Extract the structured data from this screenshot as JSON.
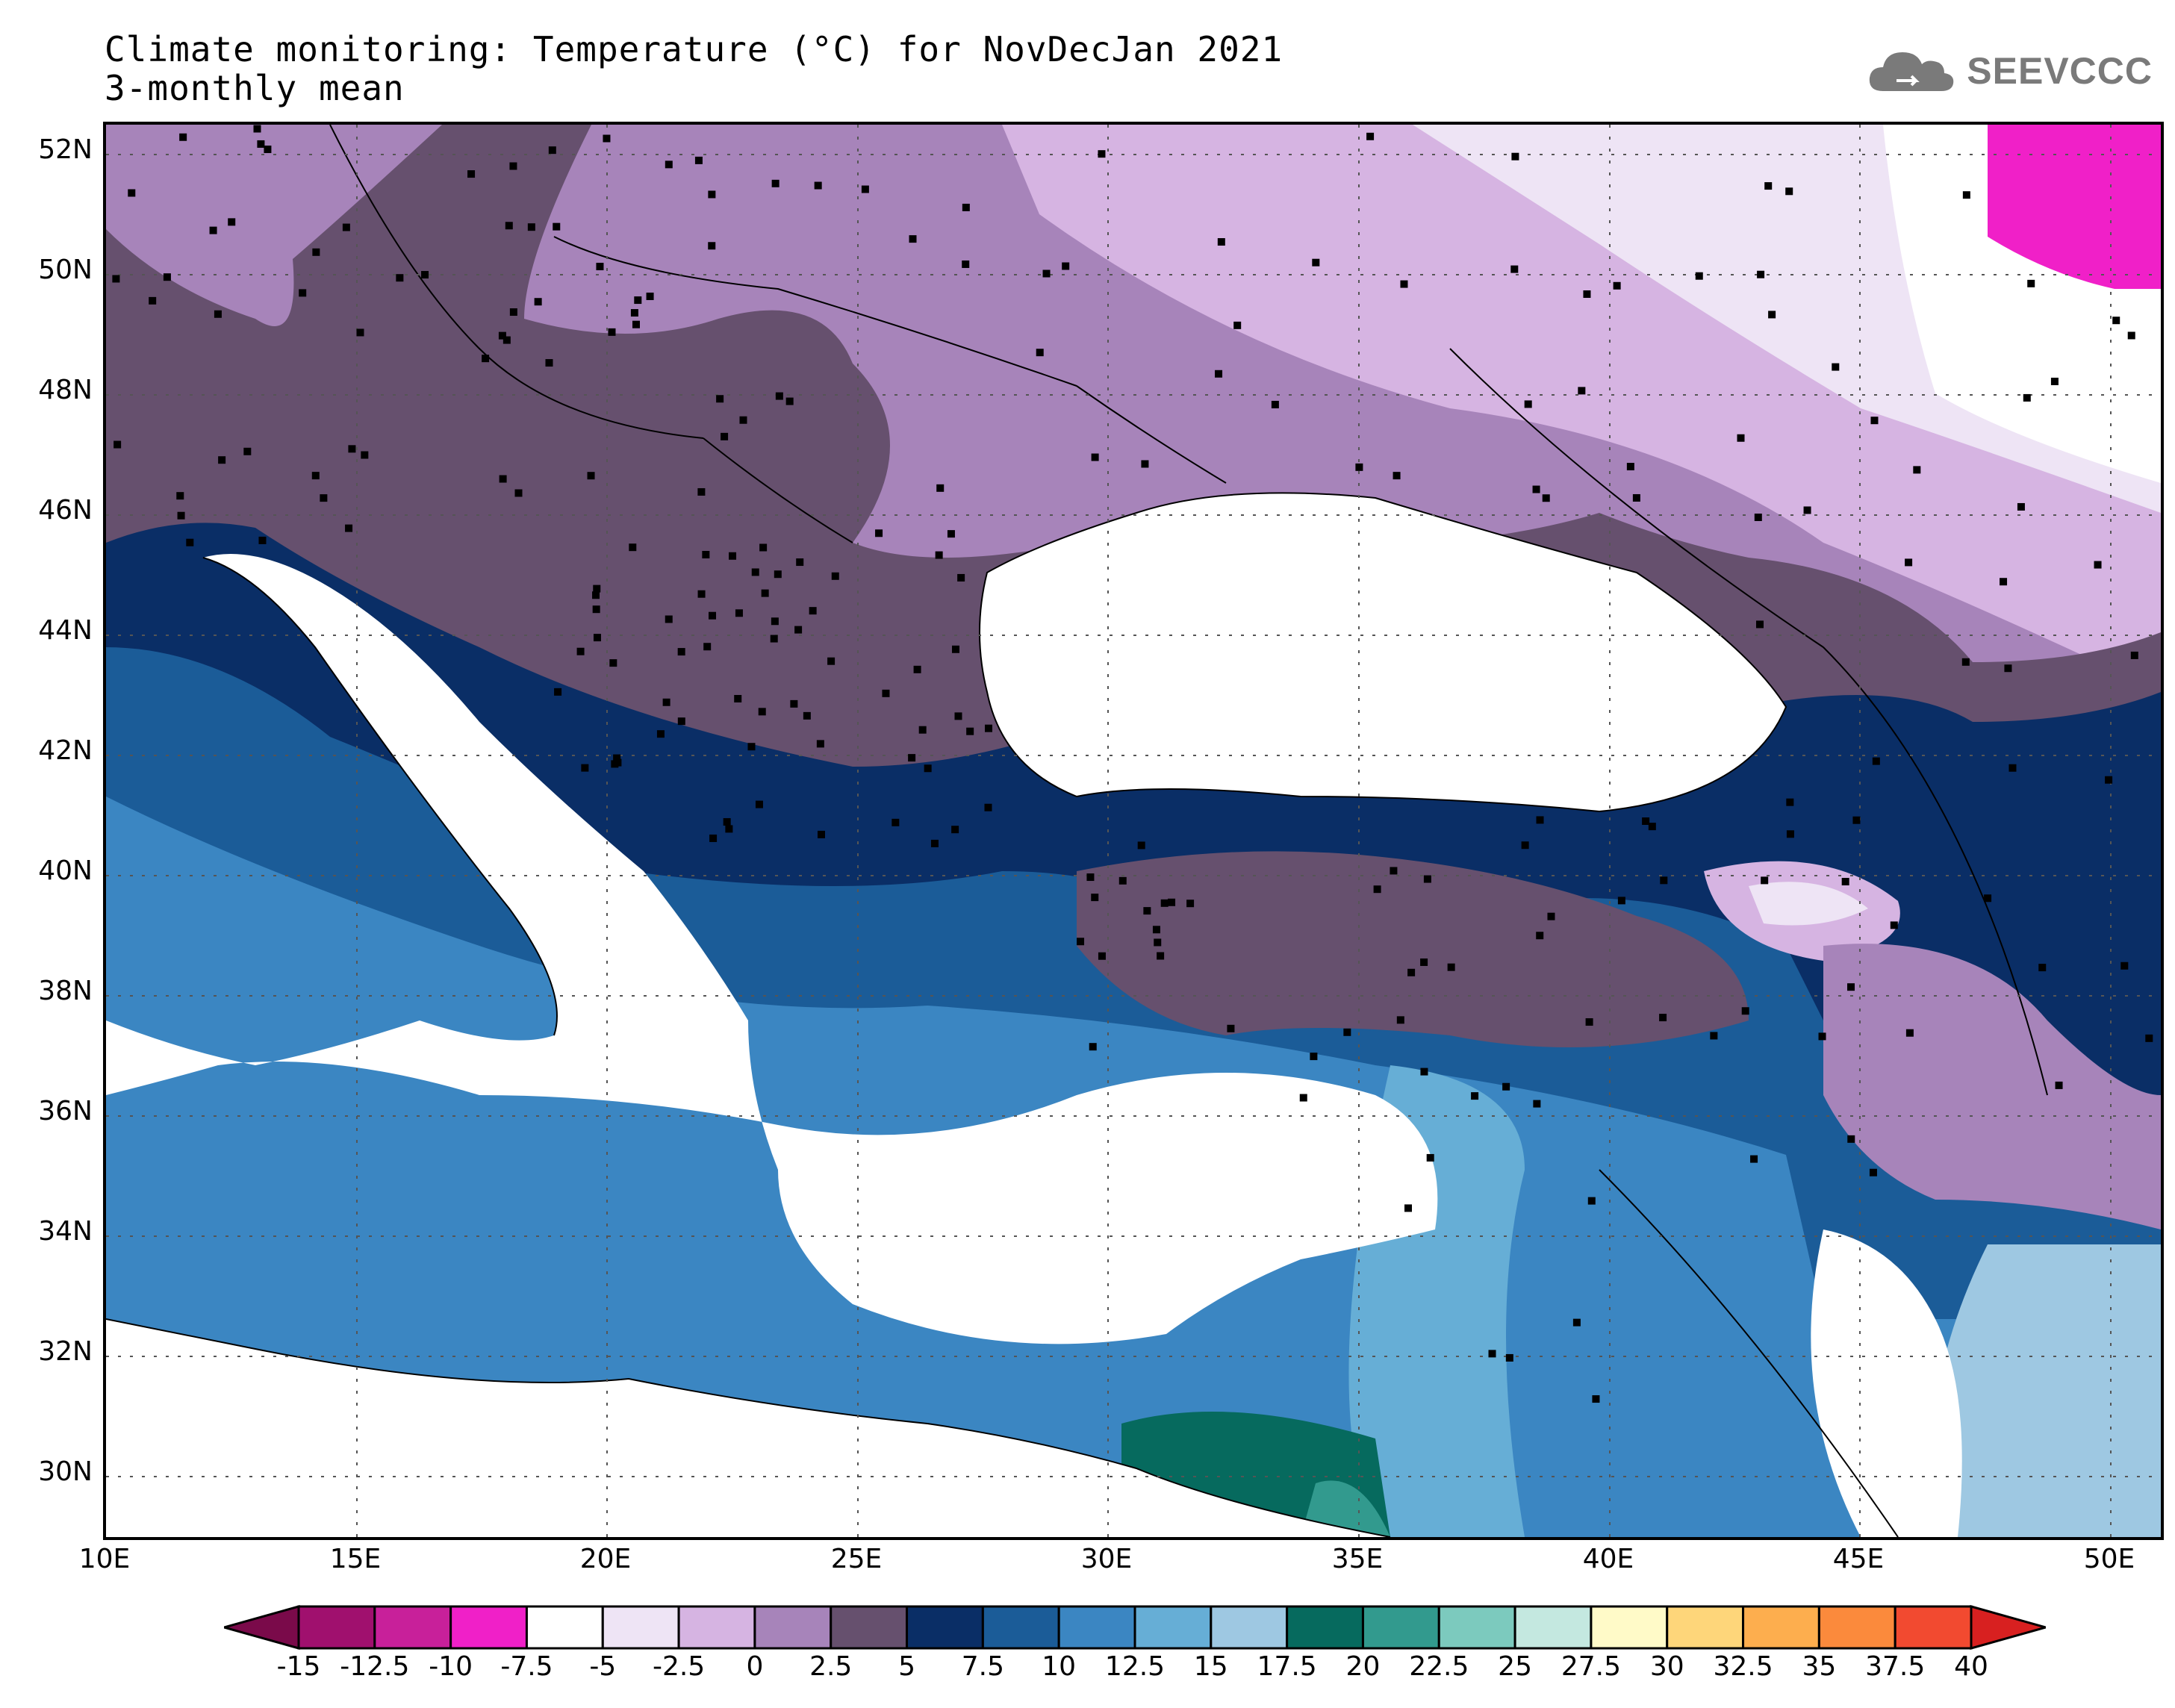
{
  "header": {
    "title_line1": "Climate monitoring: Temperature (°C) for NovDecJan 2021",
    "title_line2": "3-monthly mean",
    "logo_text": "SEEVCCC",
    "logo_icon": "cloud-icon"
  },
  "map": {
    "lon_range": [
      10,
      51
    ],
    "lat_range": [
      29,
      52.5
    ],
    "lat_ticks": [
      "52N",
      "50N",
      "48N",
      "46N",
      "44N",
      "42N",
      "40N",
      "38N",
      "36N",
      "34N",
      "32N",
      "30N"
    ],
    "lon_ticks": [
      "10E",
      "15E",
      "20E",
      "25E",
      "30E",
      "35E",
      "40E",
      "45E",
      "50E"
    ],
    "gridlines": "dotted"
  },
  "colorbar": {
    "labels": [
      "-15",
      "-12.5",
      "-10",
      "-7.5",
      "-5",
      "-2.5",
      "0",
      "2.5",
      "5",
      "7.5",
      "10",
      "12.5",
      "15",
      "17.5",
      "20",
      "22.5",
      "25",
      "27.5",
      "30",
      "32.5",
      "35",
      "37.5",
      "40"
    ],
    "colors": [
      "#7a0a4a",
      "#a0106e",
      "#c8209a",
      "#f020c8",
      "#ffffff",
      "#eee4f5",
      "#d6b4e2",
      "#a784ba",
      "#66506e",
      "#0a2e66",
      "#1b5c98",
      "#3b86c2",
      "#66aed6",
      "#9ec8e2",
      "#066a5e",
      "#329a8e",
      "#7ccabe",
      "#c4e8e0",
      "#fffac8",
      "#fed67a",
      "#fdae4e",
      "#fb8a3c",
      "#f24a30",
      "#d82020"
    ]
  }
}
